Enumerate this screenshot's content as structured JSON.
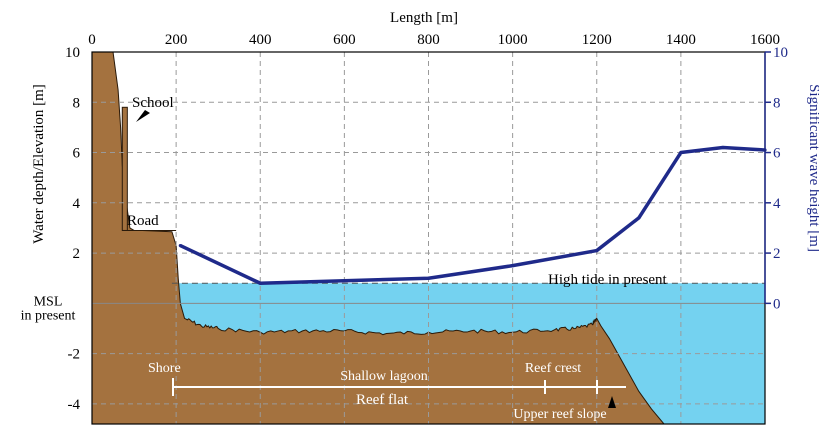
{
  "chart_data": {
    "type": "line",
    "title": "",
    "xlabel": "Length [m]",
    "ylabel_left": "Water depth/Elevation [m]",
    "ylabel_right": "Significant wave height [m]",
    "xlim": [
      0,
      1600
    ],
    "ylim_left": [
      -4.8,
      10
    ],
    "ylim_right": [
      -4.8,
      10
    ],
    "x_ticks": [
      "0",
      "200",
      "400",
      "600",
      "800",
      "1000",
      "1200",
      "1400",
      "1600"
    ],
    "y_left_ticks": [
      "10",
      "8",
      "6",
      "4",
      "2",
      "-2",
      "-4"
    ],
    "y_left_zero_label": [
      "MSL",
      "in present"
    ],
    "y_right_ticks": [
      "10",
      "8",
      "6",
      "4",
      "2",
      "0"
    ],
    "grid": true,
    "series": [
      {
        "name": "Significant wave height",
        "axis": "right",
        "color": "#1f2a8a",
        "x": [
          210,
          400,
          800,
          1000,
          1200,
          1300,
          1400,
          1500,
          1600
        ],
        "y": [
          2.3,
          0.8,
          1.0,
          1.5,
          2.1,
          3.4,
          6.0,
          6.2,
          6.1
        ]
      }
    ],
    "terrain_profile": {
      "x": [
        0,
        50,
        62,
        68,
        72,
        80,
        90,
        100,
        120,
        190,
        200,
        205,
        210,
        220,
        260,
        300,
        400,
        500,
        600,
        700,
        800,
        900,
        1000,
        1100,
        1150,
        1190,
        1200,
        1210,
        1230,
        1260,
        1300,
        1330,
        1360,
        1360,
        0
      ],
      "y": [
        10,
        10,
        8.5,
        7.0,
        5.5,
        4.2,
        3.0,
        2.9,
        2.9,
        2.85,
        2.3,
        1.0,
        0,
        -0.6,
        -0.9,
        -1.0,
        -1.15,
        -1.1,
        -1.1,
        -1.2,
        -1.15,
        -1.1,
        -1.15,
        -1.05,
        -1.0,
        -0.85,
        -0.6,
        -0.9,
        -1.4,
        -2.3,
        -3.5,
        -4.2,
        -4.8,
        -4.8,
        -4.8
      ]
    },
    "school_building": {
      "x": [
        72,
        84
      ],
      "y": [
        2.9,
        7.8
      ]
    },
    "high_tide_level": 0.8,
    "labels": {
      "school": "School",
      "road": "Road",
      "high_tide": "High tide in present",
      "shore": "Shore",
      "shallow_lagoon": "Shallow lagoon",
      "reef_crest": "Reef crest",
      "reef_flat": "Reef flat",
      "upper_reef_slope": "Upper reef slope"
    },
    "colors": {
      "terrain": "#a4723f",
      "water": "#74d2f0",
      "wave_line": "#1f2a8a",
      "right_axis": "#1f2a8a",
      "grid": "#9a9a9a"
    }
  }
}
